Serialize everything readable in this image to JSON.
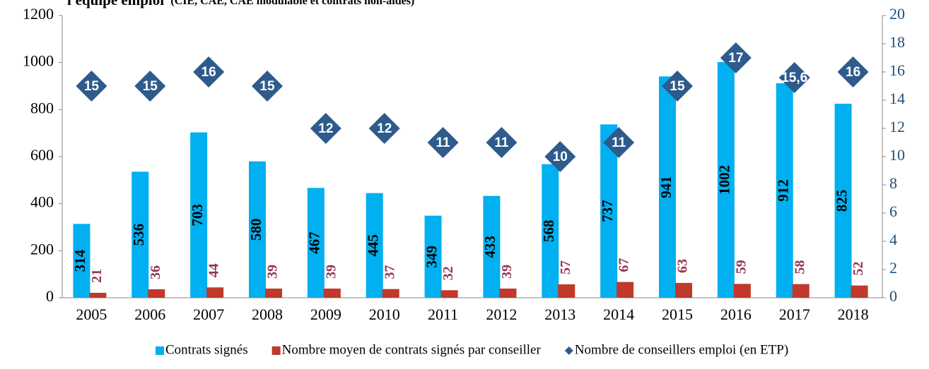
{
  "chart_data": {
    "type": "bar",
    "title": "l'équipe emploi",
    "subtitle": "(CIE, CAE, CAE modulable et contrats non-aidés)",
    "categories": [
      "2005",
      "2006",
      "2007",
      "2008",
      "2009",
      "2010",
      "2011",
      "2012",
      "2013",
      "2014",
      "2015",
      "2016",
      "2017",
      "2018"
    ],
    "series": [
      {
        "name": "Contrats signés",
        "color": "#00b0f0",
        "type": "bar",
        "values": [
          314,
          536,
          703,
          580,
          467,
          445,
          349,
          433,
          568,
          737,
          941,
          1002,
          912,
          825
        ]
      },
      {
        "name": "Nombre moyen de contrats signés par conseiller",
        "color": "#c0392b",
        "type": "bar",
        "values": [
          21,
          36,
          44,
          39,
          39,
          37,
          32,
          39,
          57,
          67,
          63,
          59,
          58,
          52
        ]
      },
      {
        "name": "Nombre de conseillers emploi (en ETP)",
        "color": "#2f5b8c",
        "type": "scatter",
        "axis": "y2",
        "values": [
          15,
          15,
          16,
          15,
          12,
          12,
          11,
          11,
          10,
          11,
          15,
          17,
          15.6,
          16
        ],
        "value_labels": [
          "15",
          "15",
          "16",
          "15",
          "12",
          "12",
          "11",
          "11",
          "10",
          "11",
          "15",
          "17",
          "15,6",
          "16"
        ]
      }
    ],
    "ylim": [
      0,
      1200
    ],
    "yticks": [
      0,
      200,
      400,
      600,
      800,
      1000,
      1200
    ],
    "y2lim": [
      0,
      20
    ],
    "y2ticks": [
      0,
      2,
      4,
      6,
      8,
      10,
      12,
      14,
      16,
      18,
      20
    ],
    "legend": "bottom"
  }
}
